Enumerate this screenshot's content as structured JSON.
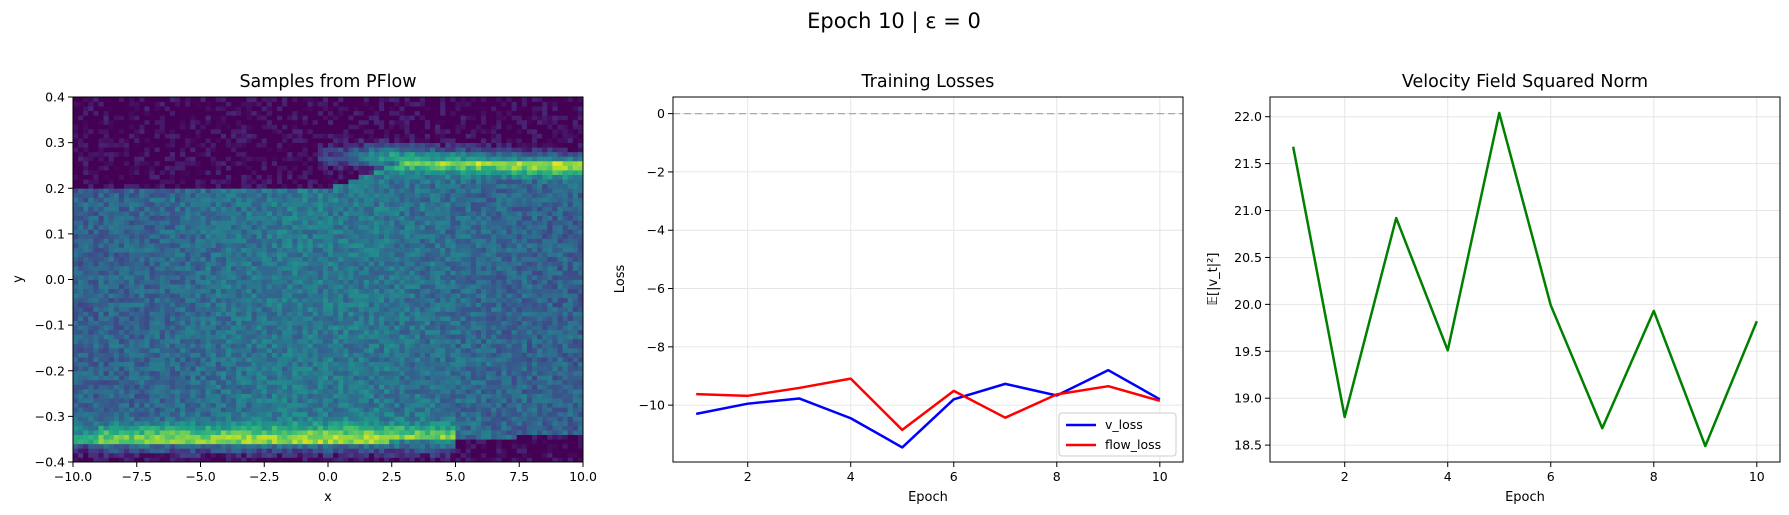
{
  "suptitle": "Epoch 10 | ε = 0",
  "chart_data": [
    {
      "type": "heatmap",
      "title": "Samples from PFlow",
      "xlabel": "x",
      "ylabel": "y",
      "xlim": [
        -10,
        10
      ],
      "ylim": [
        -0.4,
        0.4
      ],
      "xticks": [
        -10,
        -7.5,
        -5,
        -2.5,
        0,
        2.5,
        5,
        7.5,
        10
      ],
      "xtick_labels": [
        "−10.0",
        "−7.5",
        "−5.0",
        "−2.5",
        "0.0",
        "2.5",
        "5.0",
        "7.5",
        "10.0"
      ],
      "yticks": [
        -0.4,
        -0.3,
        -0.2,
        -0.1,
        0,
        0.1,
        0.2,
        0.3,
        0.4
      ],
      "ytick_labels": [
        "−0.4",
        "−0.3",
        "−0.2",
        "−0.1",
        "0.0",
        "0.1",
        "0.2",
        "0.3",
        "0.4"
      ],
      "colormap": "viridis",
      "grid": false,
      "bins": [
        100,
        80
      ],
      "density_description": {
        "upper_band": {
          "x_from": 0,
          "x_to": 10,
          "y_center": 0.26,
          "note": "bright ridge"
        },
        "lower_band": {
          "x_from": -10,
          "x_to": 5,
          "y_center": -0.34,
          "note": "bright ridge"
        },
        "diffuse_region": {
          "y_from": -0.35,
          "y_to": 0.25
        }
      }
    },
    {
      "type": "line",
      "title": "Training Losses",
      "xlabel": "Epoch",
      "ylabel": "Loss",
      "xlim": [
        0.55,
        10.45
      ],
      "ylim": [
        -11.95,
        0.57
      ],
      "xticks": [
        2,
        4,
        6,
        8,
        10
      ],
      "yticks": [
        0,
        -2,
        -4,
        -6,
        -8,
        -10
      ],
      "ytick_labels": [
        "0",
        "−2",
        "−4",
        "−6",
        "−8",
        "−10"
      ],
      "grid": true,
      "legend_position": "lower right",
      "reference_line": {
        "y": 0,
        "style": "dashed",
        "color": "#aaaaaa"
      },
      "x": [
        1,
        2,
        3,
        4,
        5,
        6,
        7,
        8,
        9,
        10
      ],
      "series": [
        {
          "name": "v_loss",
          "color": "#0000ff",
          "values": [
            -10.3,
            -9.95,
            -9.77,
            -10.45,
            -11.45,
            -9.8,
            -9.27,
            -9.67,
            -8.8,
            -9.8
          ]
        },
        {
          "name": "flow_loss",
          "color": "#ff0000",
          "values": [
            -9.62,
            -9.68,
            -9.41,
            -9.09,
            -10.85,
            -9.51,
            -10.43,
            -9.63,
            -9.35,
            -9.85
          ]
        }
      ]
    },
    {
      "type": "line",
      "title": "Velocity Field Squared Norm",
      "xlabel": "Epoch",
      "ylabel": "𝔼[|v_t|²]",
      "xlim": [
        0.55,
        10.45
      ],
      "ylim": [
        18.32,
        22.21
      ],
      "xticks": [
        2,
        4,
        6,
        8,
        10
      ],
      "yticks": [
        18.5,
        19.0,
        19.5,
        20.0,
        20.5,
        21.0,
        21.5,
        22.0
      ],
      "ytick_labels": [
        "18.5",
        "19.0",
        "19.5",
        "20.0",
        "20.5",
        "21.0",
        "21.5",
        "22.0"
      ],
      "grid": true,
      "x": [
        1,
        2,
        3,
        4,
        5,
        6,
        7,
        8,
        9,
        10
      ],
      "series": [
        {
          "color": "#008000",
          "values": [
            21.68,
            18.8,
            20.92,
            19.51,
            22.04,
            19.99,
            18.68,
            19.93,
            18.49,
            19.82
          ]
        }
      ]
    }
  ]
}
